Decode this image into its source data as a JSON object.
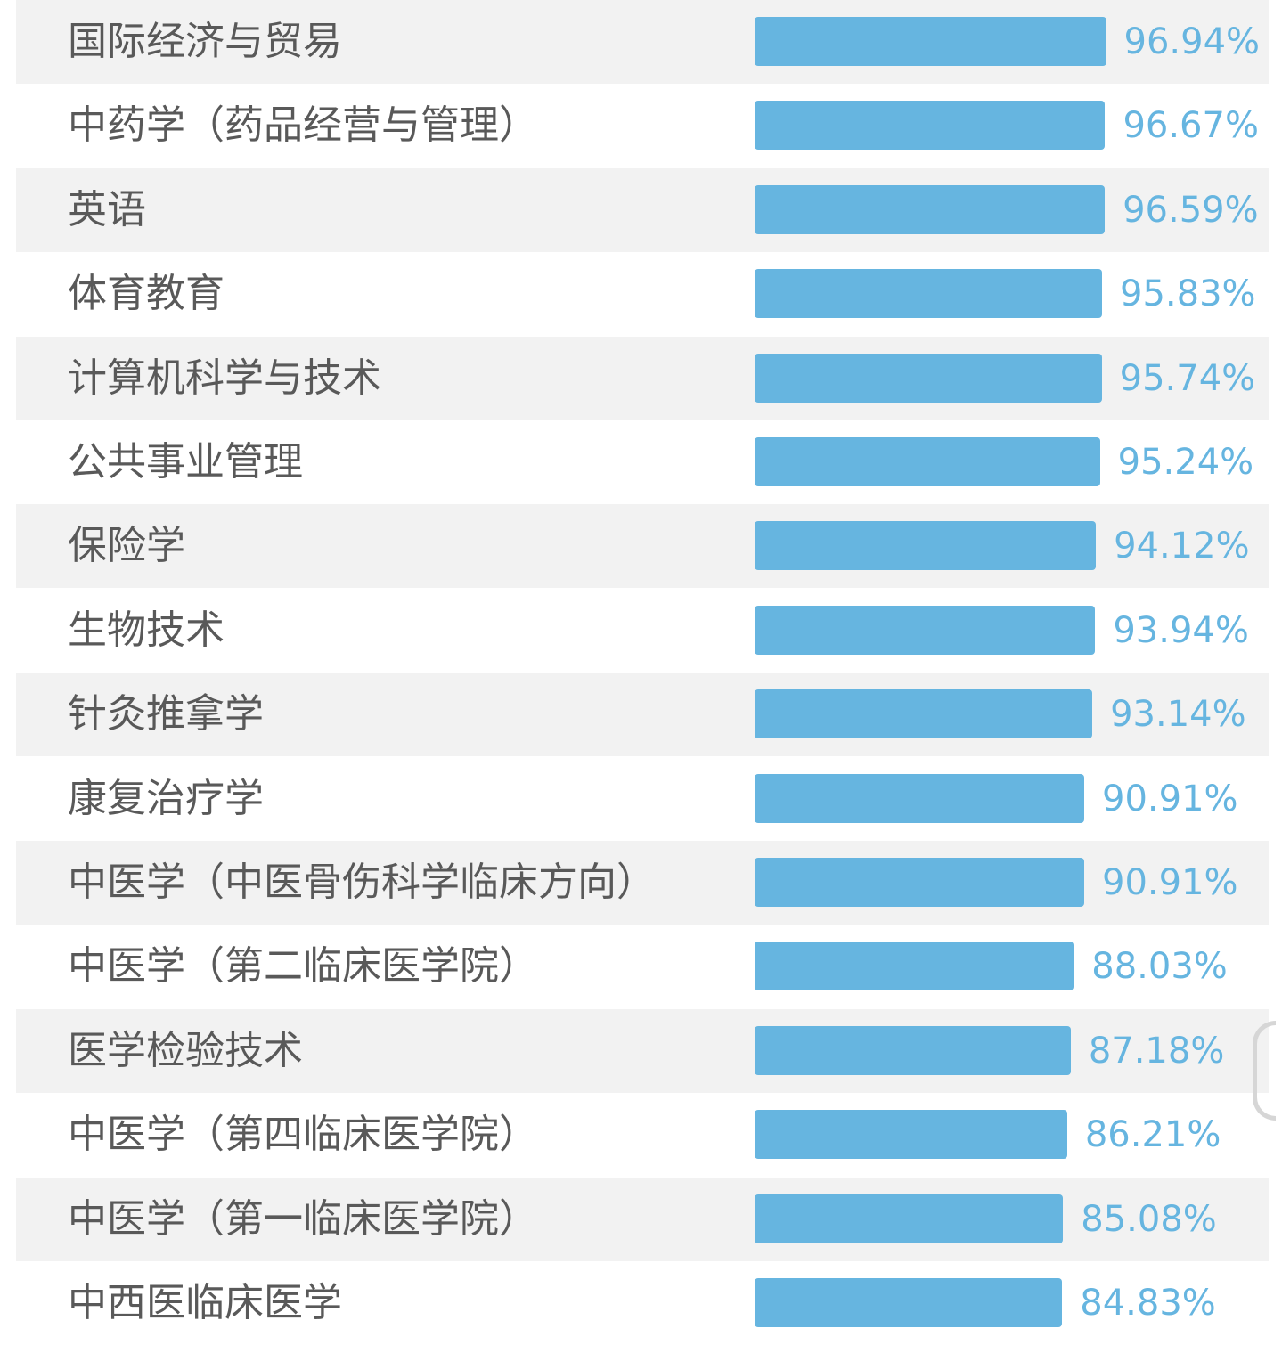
{
  "chart_data": {
    "type": "bar",
    "orientation": "horizontal",
    "categories": [
      "国际经济与贸易",
      "中药学（药品经营与管理）",
      "英语",
      "体育教育",
      "计算机科学与技术",
      "公共事业管理",
      "保险学",
      "生物技术",
      "针灸推拿学",
      "康复治疗学",
      "中医学（中医骨伤科学临床方向）",
      "中医学（第二临床医学院）",
      "医学检验技术",
      "中医学（第四临床医学院）",
      "中医学（第一临床医学院）",
      "中西医临床医学"
    ],
    "values": [
      96.94,
      96.67,
      96.59,
      95.83,
      95.74,
      95.24,
      94.12,
      93.94,
      93.14,
      90.91,
      90.91,
      88.03,
      87.18,
      86.21,
      85.08,
      84.83
    ],
    "value_labels": [
      "96.94%",
      "96.67%",
      "96.59%",
      "95.83%",
      "95.74%",
      "95.24%",
      "94.12%",
      "93.94%",
      "93.14%",
      "90.91%",
      "90.91%",
      "88.03%",
      "87.18%",
      "86.21%",
      "85.08%",
      "84.83%"
    ],
    "xlim": [
      0,
      100
    ],
    "unit": "%",
    "grid": false,
    "legend": "none",
    "colors": {
      "bar": "#66b5e0",
      "value_text": "#66b5e0",
      "label_text": "#595959",
      "stripe": "#f2f2f2"
    }
  }
}
